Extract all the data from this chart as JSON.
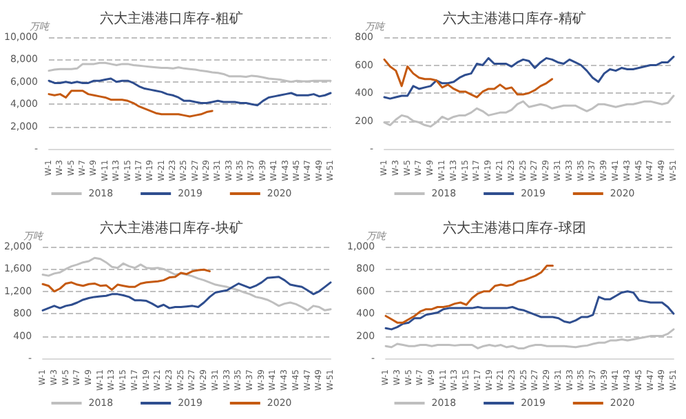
{
  "chart_data": [
    {
      "type": "line",
      "title": "六大主港港口库存-粗矿",
      "ylabel": "万吨",
      "categories": [
        "W-1",
        null,
        "W-3",
        null,
        "W-5",
        null,
        "W-7",
        null,
        "W-9",
        null,
        "W-11",
        null,
        "W-13",
        null,
        "W-15",
        null,
        "W-17",
        null,
        "W-19",
        null,
        "W-21",
        null,
        "W-23",
        null,
        "W-25",
        null,
        "W-27",
        null,
        "W-29",
        null,
        "W-31",
        null,
        "W-33",
        null,
        "W-35",
        null,
        "W-37",
        null,
        "W-39",
        null,
        "W-41",
        null,
        "W-43",
        null,
        "W-45",
        null,
        "W-47",
        null,
        "W-49",
        null,
        "W-51"
      ],
      "series": [
        {
          "name": "2018",
          "color": "#bfbfbf",
          "values": [
            7000,
            7100,
            7150,
            7150,
            7150,
            7200,
            7600,
            7600,
            7600,
            7700,
            7700,
            7600,
            7500,
            7600,
            7600,
            7500,
            7450,
            7400,
            7350,
            7300,
            7250,
            7250,
            7200,
            7300,
            7200,
            7150,
            7100,
            7000,
            6950,
            6850,
            6800,
            6700,
            6500,
            6500,
            6500,
            6450,
            6550,
            6500,
            6400,
            6300,
            6250,
            6200,
            6100,
            6000,
            6100,
            6050,
            6050,
            6100,
            6100,
            6100,
            6100
          ]
        },
        {
          "name": "2019",
          "color": "#2f4e8f",
          "values": [
            6100,
            5900,
            5900,
            6000,
            5900,
            6000,
            5900,
            5900,
            6100,
            6100,
            6200,
            6300,
            6000,
            6100,
            6100,
            5900,
            5600,
            5400,
            5300,
            5200,
            5100,
            4900,
            4800,
            4600,
            4300,
            4300,
            4200,
            4100,
            4100,
            4200,
            4300,
            4200,
            4200,
            4200,
            4100,
            4100,
            4000,
            3900,
            4300,
            4600,
            4700,
            4800,
            4900,
            5000,
            4800,
            4800,
            4800,
            4900,
            4700,
            4800,
            5000
          ]
        },
        {
          "name": "2020",
          "color": "#c55a11",
          "values": [
            4900,
            4800,
            4900,
            4600,
            5200,
            5200,
            5200,
            4900,
            4800,
            4700,
            4600,
            4400,
            4400,
            4400,
            4300,
            4100,
            3800,
            3600,
            3400,
            3200,
            3100,
            3100,
            3100,
            3100,
            3000,
            2900,
            3000,
            3100,
            3300,
            3400,
            null,
            null,
            null,
            null,
            null,
            null,
            null,
            null,
            null,
            null,
            null,
            null,
            null,
            null,
            null,
            null,
            null,
            null,
            null,
            null,
            null
          ]
        }
      ],
      "ylim": [
        0,
        10000
      ],
      "yticks": [
        {
          "value": 0,
          "label": "-"
        },
        {
          "value": 2000,
          "label": "2,000"
        },
        {
          "value": 4000,
          "label": "4,000"
        },
        {
          "value": 6000,
          "label": "6,000"
        },
        {
          "value": 8000,
          "label": "8,000"
        },
        {
          "value": 10000,
          "label": "10,000"
        }
      ],
      "grid": "y",
      "legend": "bottom",
      "marker": "none"
    },
    {
      "type": "line",
      "title": "六大主港港口库存-精矿",
      "ylabel": "万吨",
      "categories": [
        "W-1",
        null,
        "W-3",
        null,
        "W-5",
        null,
        "W-7",
        null,
        "W-9",
        null,
        "W-11",
        null,
        "W-13",
        null,
        "W-15",
        null,
        "W-17",
        null,
        "W-19",
        null,
        "W-21",
        null,
        "W-23",
        null,
        "W-25",
        null,
        "W-27",
        null,
        "W-29",
        null,
        "W-31",
        null,
        "W-33",
        null,
        "W-35",
        null,
        "W-37",
        null,
        "W-39",
        null,
        "W-41",
        null,
        "W-43",
        null,
        "W-45",
        null,
        "W-47",
        null,
        "W-49",
        null,
        "W-51"
      ],
      "series": [
        {
          "name": "2018",
          "color": "#bfbfbf",
          "values": [
            190,
            170,
            210,
            240,
            230,
            200,
            190,
            170,
            160,
            190,
            230,
            210,
            230,
            240,
            240,
            260,
            290,
            270,
            240,
            250,
            260,
            260,
            280,
            320,
            340,
            300,
            310,
            320,
            310,
            290,
            300,
            310,
            310,
            310,
            290,
            270,
            290,
            320,
            320,
            310,
            300,
            310,
            320,
            320,
            330,
            340,
            340,
            330,
            320,
            330,
            380
          ]
        },
        {
          "name": "2019",
          "color": "#2f4e8f",
          "values": [
            370,
            360,
            370,
            380,
            380,
            450,
            430,
            440,
            450,
            490,
            470,
            470,
            480,
            510,
            530,
            540,
            610,
            600,
            650,
            610,
            610,
            610,
            590,
            620,
            640,
            630,
            580,
            620,
            650,
            640,
            620,
            610,
            640,
            620,
            600,
            560,
            510,
            480,
            540,
            570,
            560,
            580,
            570,
            570,
            580,
            590,
            600,
            600,
            620,
            620,
            660
          ]
        },
        {
          "name": "2020",
          "color": "#c55a11",
          "values": [
            640,
            590,
            560,
            450,
            590,
            540,
            510,
            500,
            500,
            490,
            440,
            460,
            430,
            410,
            410,
            390,
            370,
            410,
            430,
            430,
            460,
            430,
            440,
            390,
            390,
            400,
            420,
            450,
            470,
            500,
            null,
            null,
            null,
            null,
            null,
            null,
            null,
            null,
            null,
            null,
            null,
            null,
            null,
            null,
            null,
            null,
            null,
            null,
            null,
            null,
            null
          ]
        }
      ],
      "ylim": [
        0,
        800
      ],
      "yticks": [
        {
          "value": 0,
          "label": "-"
        },
        200,
        400,
        600,
        800
      ],
      "grid": "y",
      "legend": "bottom",
      "marker": "none"
    },
    {
      "type": "line",
      "title": "六大主港港口库存-块矿",
      "ylabel": "万吨",
      "categories": [
        "W-1",
        null,
        "W-3",
        null,
        "W-5",
        null,
        "W-7",
        null,
        "W-9",
        null,
        "W-11",
        null,
        "W-13",
        null,
        "W-15",
        null,
        "W-17",
        null,
        "W-19",
        null,
        "W-21",
        null,
        "W-23",
        null,
        "W-25",
        null,
        "W-27",
        null,
        "W-29",
        null,
        "W-31",
        null,
        "W-33",
        null,
        "W-35",
        null,
        "W-37",
        null,
        "W-39",
        null,
        "W-41",
        null,
        "W-43",
        null,
        "W-45",
        null,
        "W-47",
        null,
        "W-49",
        null,
        "W-51"
      ],
      "series": [
        {
          "name": "2018",
          "color": "#bfbfbf",
          "values": [
            1500,
            1480,
            1520,
            1540,
            1600,
            1650,
            1680,
            1720,
            1740,
            1800,
            1780,
            1720,
            1640,
            1620,
            1700,
            1650,
            1620,
            1680,
            1620,
            1610,
            1620,
            1600,
            1550,
            1500,
            1520,
            1500,
            1470,
            1430,
            1400,
            1360,
            1320,
            1300,
            1280,
            1250,
            1220,
            1180,
            1150,
            1100,
            1080,
            1050,
            1000,
            940,
            980,
            1000,
            970,
            920,
            860,
            940,
            920,
            860,
            880
          ]
        },
        {
          "name": "2019",
          "color": "#2f4e8f",
          "values": [
            860,
            900,
            940,
            900,
            940,
            960,
            1000,
            1050,
            1080,
            1100,
            1110,
            1120,
            1150,
            1150,
            1130,
            1100,
            1040,
            1040,
            1030,
            980,
            920,
            960,
            900,
            920,
            920,
            930,
            940,
            920,
            1000,
            1100,
            1180,
            1200,
            1220,
            1280,
            1340,
            1300,
            1260,
            1300,
            1360,
            1440,
            1450,
            1460,
            1400,
            1320,
            1300,
            1280,
            1220,
            1150,
            1200,
            1280,
            1360
          ]
        },
        {
          "name": "2020",
          "color": "#c55a11",
          "values": [
            1330,
            1300,
            1200,
            1250,
            1340,
            1360,
            1320,
            1300,
            1330,
            1340,
            1300,
            1310,
            1230,
            1320,
            1300,
            1280,
            1280,
            1340,
            1360,
            1370,
            1380,
            1400,
            1450,
            1460,
            1530,
            1510,
            1560,
            1580,
            1590,
            1560,
            null,
            null,
            null,
            null,
            null,
            null,
            null,
            null,
            null,
            null,
            null,
            null,
            null,
            null,
            null,
            null,
            null,
            null,
            null,
            null,
            null
          ]
        }
      ],
      "ylim": [
        0,
        2000
      ],
      "yticks": [
        {
          "value": 0,
          "label": "-"
        },
        400,
        800,
        {
          "value": 1200,
          "label": "1,200"
        },
        {
          "value": 1600,
          "label": "1,600"
        },
        {
          "value": 2000,
          "label": "2,000"
        }
      ],
      "grid": "y",
      "legend": "bottom",
      "marker": "none"
    },
    {
      "type": "line",
      "title": "六大主港港口库存-球团",
      "ylabel": "万吨",
      "categories": [
        "W-1",
        null,
        "W-3",
        null,
        "W-5",
        null,
        "W-7",
        null,
        "W-9",
        null,
        "W-11",
        null,
        "W-13",
        null,
        "W-15",
        null,
        "W-17",
        null,
        "W-19",
        null,
        "W-21",
        null,
        "W-23",
        null,
        "W-25",
        null,
        "W-27",
        null,
        "W-29",
        null,
        "W-31",
        null,
        "W-33",
        null,
        "W-35",
        null,
        "W-37",
        null,
        "W-39",
        null,
        "W-41",
        null,
        "W-43",
        null,
        "W-45",
        null,
        "W-47",
        null,
        "W-49",
        null,
        "W-51"
      ],
      "series": [
        {
          "name": "2018",
          "color": "#bfbfbf",
          "values": [
            110,
            100,
            130,
            120,
            110,
            110,
            120,
            120,
            110,
            120,
            120,
            120,
            115,
            120,
            120,
            120,
            90,
            110,
            120,
            110,
            120,
            100,
            110,
            90,
            90,
            110,
            120,
            120,
            110,
            110,
            110,
            110,
            105,
            100,
            110,
            115,
            130,
            140,
            140,
            160,
            160,
            170,
            160,
            170,
            180,
            190,
            200,
            200,
            200,
            220,
            260
          ]
        },
        {
          "name": "2019",
          "color": "#2f4e8f",
          "values": [
            270,
            260,
            280,
            310,
            320,
            360,
            360,
            390,
            400,
            410,
            440,
            450,
            450,
            450,
            450,
            450,
            460,
            450,
            450,
            450,
            450,
            450,
            460,
            440,
            430,
            410,
            390,
            370,
            370,
            370,
            360,
            330,
            320,
            340,
            370,
            370,
            390,
            550,
            530,
            530,
            560,
            590,
            600,
            590,
            520,
            510,
            500,
            500,
            500,
            460,
            400
          ]
        },
        {
          "name": "2020",
          "color": "#c55a11",
          "values": [
            380,
            350,
            320,
            320,
            350,
            380,
            420,
            440,
            440,
            460,
            460,
            470,
            490,
            500,
            480,
            540,
            580,
            600,
            600,
            650,
            660,
            650,
            660,
            690,
            700,
            720,
            740,
            770,
            830,
            830,
            null,
            null,
            null,
            null,
            null,
            null,
            null,
            null,
            null,
            null,
            null,
            null,
            null,
            null,
            null,
            null,
            null,
            null,
            null,
            null,
            null
          ]
        }
      ],
      "ylim": [
        0,
        1000
      ],
      "yticks": [
        {
          "value": 0,
          "label": "-"
        },
        200,
        400,
        600,
        800,
        {
          "value": 1000,
          "label": "1,000"
        }
      ],
      "grid": "y",
      "legend": "bottom",
      "marker": "none"
    }
  ]
}
